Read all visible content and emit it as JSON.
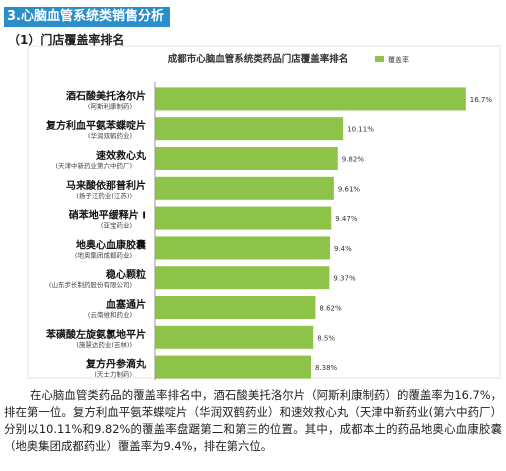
{
  "section_heading": "3.心脑血管系统类销售分析",
  "sub_heading": "（1）门店覆盖率排名",
  "description": "在心脑血管类药品的覆盖率排名中，酒石酸美托洛尔片（阿斯利康制药）的覆盖率为16.7%，排在第一位。复方利血平氨苯蝶啶片（华润双鹤药业）和速效救心丸（天津中新药业(第六中药厂）分别以10.11%和9.82%的覆盖率盘踞第二和第三的位置。其中，成都本土的药品地奥心血康胶囊（地奥集团成都药业）覆盖率为9.4%，排在第六位。",
  "chart_data": {
    "type": "bar",
    "orientation": "horizontal",
    "title": "成都市心脑血管系统类药品门店覆盖率排名",
    "legend": {
      "label": "覆盖率",
      "position": "top-right"
    },
    "bar_color": "#8cc348",
    "xlim": [
      0,
      18
    ],
    "xticks": [
      0,
      3,
      6,
      9,
      12,
      15,
      18
    ],
    "grid": false,
    "categories": [
      {
        "name": "酒石酸美托洛尔片",
        "maker": "(阿斯利康制药)",
        "value": 16.7,
        "label": "16.7%"
      },
      {
        "name": "复方利血平氨苯蝶啶片",
        "maker": "(华润双鹤药业)",
        "value": 10.11,
        "label": "10.11%"
      },
      {
        "name": "速效救心丸",
        "maker": "(天津中新药业第六中药厂)",
        "value": 9.82,
        "label": "9.82%"
      },
      {
        "name": "马来酸依那普利片",
        "maker": "(扬子江药业(江苏))",
        "value": 9.61,
        "label": "9.61%"
      },
      {
        "name": "硝苯地平缓释片 I",
        "maker": "(亚宝药业)",
        "value": 9.47,
        "label": "9.47%"
      },
      {
        "name": "地奥心血康胶囊",
        "maker": "(地奥集团成都药业)",
        "value": 9.4,
        "label": "9.4%"
      },
      {
        "name": "稳心颗粒",
        "maker": "(山东步长制药股份有限公司)",
        "value": 9.37,
        "label": "9.37%"
      },
      {
        "name": "血塞通片",
        "maker": "(云南维和药业)",
        "value": 8.62,
        "label": "8.62%"
      },
      {
        "name": "苯磺酸左旋氨氯地平片",
        "maker": "(施慧达药业(吉林))",
        "value": 8.5,
        "label": "8.5%"
      },
      {
        "name": "复方丹参滴丸",
        "maker": "(天士力制药)",
        "value": 8.38,
        "label": "8.38%"
      }
    ]
  }
}
